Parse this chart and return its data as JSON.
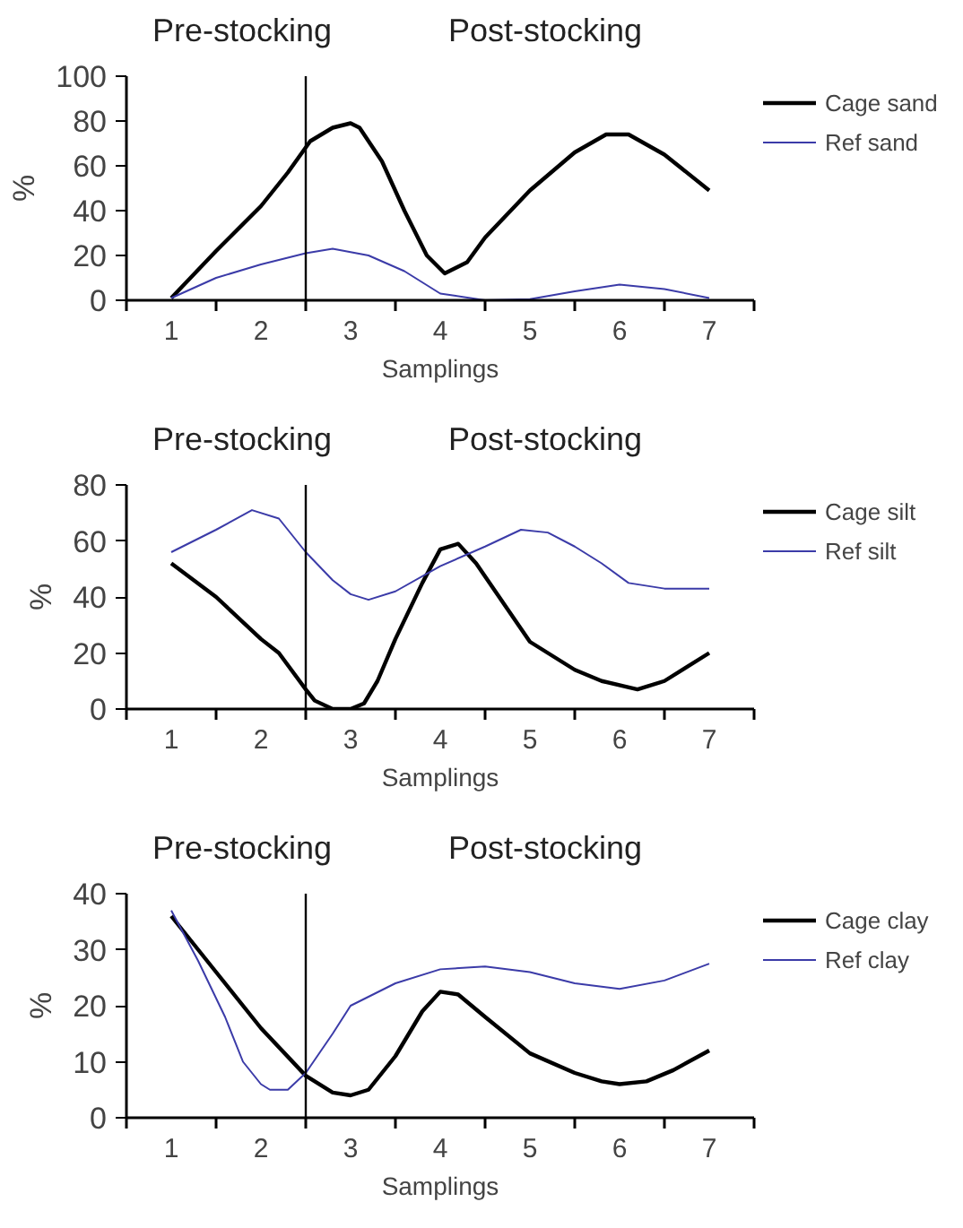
{
  "chart_data": [
    {
      "type": "line",
      "xlabel": "Samplings",
      "ylabel": "%",
      "legend": "right",
      "grid": false,
      "xlim": [
        0.5,
        7.5
      ],
      "ylim": [
        0,
        100
      ],
      "yticks": [
        0,
        20,
        40,
        60,
        80,
        100
      ],
      "xticks": [
        {
          "value": 0.5,
          "label": null
        },
        1,
        {
          "value": 1.5,
          "label": null
        },
        2,
        {
          "value": 2.5,
          "label": null
        },
        3,
        {
          "value": 3.5,
          "label": null
        },
        4,
        {
          "value": 4.5,
          "label": null
        },
        5,
        {
          "value": 5.5,
          "label": null
        },
        6,
        {
          "value": 6.5,
          "label": null
        },
        7,
        {
          "value": 7.5,
          "label": null
        }
      ],
      "ref_lines": [
        {
          "axis": "x",
          "value": 2.5,
          "color": "#000000"
        }
      ],
      "annotations": [
        "Pre-stocking",
        "Post-stocking"
      ],
      "series": [
        {
          "name": "Cage sand",
          "color": "#000000",
          "x": [
            1,
            1.5,
            2,
            2.3,
            2.55,
            2.8,
            3,
            3.1,
            3.35,
            3.6,
            3.85,
            4.05,
            4.3,
            4.5,
            5,
            5.5,
            5.85,
            6.1,
            6.5,
            7
          ],
          "values": [
            1,
            22,
            42,
            57,
            71,
            77,
            79,
            77,
            62,
            40,
            20,
            12,
            17,
            28,
            49,
            66,
            74,
            74,
            65,
            49
          ]
        },
        {
          "name": "Ref sand",
          "color": "#3b3ba8",
          "x": [
            1,
            1.5,
            2,
            2.5,
            2.8,
            3.2,
            3.6,
            4,
            4.5,
            5,
            5.5,
            6,
            6.5,
            7
          ],
          "values": [
            1,
            10,
            16,
            21,
            23,
            20,
            13,
            3,
            0,
            0.5,
            4,
            7,
            5,
            1
          ]
        }
      ]
    },
    {
      "type": "line",
      "xlabel": "Samplings",
      "ylabel": "%",
      "legend": "right",
      "grid": false,
      "xlim": [
        0.5,
        7.5
      ],
      "ylim": [
        0,
        80
      ],
      "yticks": [
        0,
        20,
        40,
        60,
        80
      ],
      "xticks": [
        {
          "value": 0.5,
          "label": null
        },
        1,
        {
          "value": 1.5,
          "label": null
        },
        2,
        {
          "value": 2.5,
          "label": null
        },
        3,
        {
          "value": 3.5,
          "label": null
        },
        4,
        {
          "value": 4.5,
          "label": null
        },
        5,
        {
          "value": 5.5,
          "label": null
        },
        6,
        {
          "value": 6.5,
          "label": null
        },
        7,
        {
          "value": 7.5,
          "label": null
        }
      ],
      "ref_lines": [
        {
          "axis": "x",
          "value": 2.5,
          "color": "#000000"
        }
      ],
      "annotations": [
        "Pre-stocking",
        "Post-stocking"
      ],
      "series": [
        {
          "name": "Cage silt",
          "color": "#000000",
          "x": [
            1,
            1.5,
            2,
            2.2,
            2.5,
            2.6,
            2.8,
            3,
            3.15,
            3.3,
            3.5,
            3.8,
            4,
            4.2,
            4.4,
            4.7,
            5,
            5.5,
            5.8,
            6.2,
            6.5,
            7
          ],
          "values": [
            52,
            40,
            25,
            20,
            7,
            3,
            0,
            0,
            2,
            10,
            25,
            45,
            57,
            59,
            52,
            38,
            24,
            14,
            10,
            7,
            10,
            20
          ]
        },
        {
          "name": "Ref silt",
          "color": "#3b3ba8",
          "x": [
            1,
            1.5,
            1.9,
            2.2,
            2.5,
            2.8,
            3,
            3.2,
            3.5,
            4,
            4.5,
            4.9,
            5.2,
            5.5,
            5.8,
            6.1,
            6.5,
            7
          ],
          "values": [
            56,
            64,
            71,
            68,
            56,
            46,
            41,
            39,
            42,
            51,
            58,
            64,
            63,
            58,
            52,
            45,
            43,
            43
          ]
        }
      ]
    },
    {
      "type": "line",
      "xlabel": "Samplings",
      "ylabel": "%",
      "legend": "right",
      "grid": false,
      "xlim": [
        0.5,
        7.5
      ],
      "ylim": [
        0,
        40
      ],
      "yticks": [
        0,
        10,
        20,
        30,
        40
      ],
      "xticks": [
        {
          "value": 0.5,
          "label": null
        },
        1,
        {
          "value": 1.5,
          "label": null
        },
        2,
        {
          "value": 2.5,
          "label": null
        },
        3,
        {
          "value": 3.5,
          "label": null
        },
        4,
        {
          "value": 4.5,
          "label": null
        },
        5,
        {
          "value": 5.5,
          "label": null
        },
        6,
        {
          "value": 6.5,
          "label": null
        },
        7,
        {
          "value": 7.5,
          "label": null
        }
      ],
      "ref_lines": [
        {
          "axis": "x",
          "value": 2.5,
          "color": "#000000"
        }
      ],
      "annotations": [
        "Pre-stocking",
        "Post-stocking"
      ],
      "series": [
        {
          "name": "Cage clay",
          "color": "#000000",
          "x": [
            1,
            1.5,
            2,
            2.5,
            2.8,
            3,
            3.2,
            3.5,
            3.8,
            4,
            4.2,
            4.5,
            5,
            5.5,
            5.8,
            6,
            6.3,
            6.6,
            7
          ],
          "values": [
            36,
            26,
            16,
            7.5,
            4.5,
            4,
            5,
            11,
            19,
            22.5,
            22,
            18,
            11.5,
            8,
            6.5,
            6,
            6.5,
            8.5,
            12
          ]
        },
        {
          "name": "Ref clay",
          "color": "#3b3ba8",
          "x": [
            1,
            1.3,
            1.6,
            1.8,
            2,
            2.1,
            2.3,
            2.5,
            2.8,
            3,
            3.5,
            4,
            4.5,
            5,
            5.5,
            6,
            6.5,
            7
          ],
          "values": [
            37,
            28,
            18,
            10,
            6,
            5,
            5,
            8,
            15,
            20,
            24,
            26.5,
            27,
            26,
            24,
            23,
            24.5,
            27.5
          ]
        }
      ]
    }
  ]
}
